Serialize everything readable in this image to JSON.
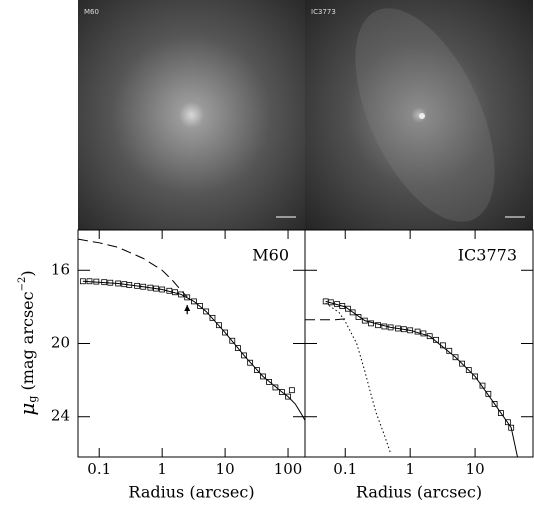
{
  "images": [
    {
      "label": "M60"
    },
    {
      "label": "IC3773"
    }
  ],
  "chart_data": [
    {
      "type": "line",
      "title": "M60",
      "xlabel": "Radius (arcsec)",
      "ylabel": {
        "symbol": "μ",
        "subscript": "g",
        "unit": "(mag arcsec",
        "exponent": "−2",
        "close": ")"
      },
      "xscale": "log",
      "xlim": [
        0.046,
        186
      ],
      "xticks": [
        0.1,
        1,
        10,
        100
      ],
      "ylim": [
        26.2,
        13.8
      ],
      "yticks": [
        16,
        20,
        24
      ],
      "color": "#000000",
      "arrow_x": 2.5,
      "arrow_y": [
        18.4,
        17.9
      ],
      "series": [
        {
          "style": "markers",
          "x": [
            0.055,
            0.07,
            0.09,
            0.12,
            0.15,
            0.2,
            0.25,
            0.3,
            0.4,
            0.5,
            0.65,
            0.8,
            1.0,
            1.3,
            1.6,
            2.0,
            2.5,
            3.2,
            4,
            5,
            6.3,
            8,
            10,
            13,
            16,
            20,
            25,
            32,
            40,
            50,
            63,
            80,
            100,
            115
          ],
          "values": [
            16.6,
            16.6,
            16.62,
            16.65,
            16.68,
            16.72,
            16.76,
            16.8,
            16.85,
            16.9,
            16.95,
            17.0,
            17.05,
            17.12,
            17.2,
            17.32,
            17.48,
            17.7,
            17.95,
            18.25,
            18.6,
            19.0,
            19.4,
            19.85,
            20.25,
            20.65,
            21.05,
            21.45,
            21.8,
            22.1,
            22.4,
            22.65,
            22.9,
            22.55
          ]
        },
        {
          "style": "solid",
          "x": [
            0.055,
            0.2,
            0.5,
            1.0,
            2.0,
            3.2,
            5,
            10,
            20,
            40,
            80,
            100,
            130,
            160,
            186
          ],
          "values": [
            16.6,
            16.72,
            16.9,
            17.05,
            17.32,
            17.7,
            18.25,
            19.4,
            20.65,
            21.8,
            22.65,
            22.9,
            23.3,
            23.8,
            24.2
          ]
        },
        {
          "style": "dashed",
          "x": [
            0.046,
            0.1,
            0.2,
            0.5,
            1,
            1.5,
            2,
            2.5
          ],
          "values": [
            14.3,
            14.5,
            14.75,
            15.35,
            16.0,
            16.6,
            17.1,
            17.45
          ]
        }
      ]
    },
    {
      "type": "line",
      "title": "IC3773",
      "xlabel": "Radius (arcsec)",
      "xscale": "log",
      "xlim": [
        0.024,
        78
      ],
      "xticks": [
        0.1,
        1,
        10
      ],
      "ylim": [
        26.2,
        13.8
      ],
      "yticks": [
        16,
        20,
        24
      ],
      "color": "#000000",
      "series": [
        {
          "style": "markers",
          "x": [
            0.05,
            0.06,
            0.075,
            0.09,
            0.11,
            0.13,
            0.16,
            0.2,
            0.25,
            0.32,
            0.4,
            0.5,
            0.65,
            0.8,
            1.0,
            1.3,
            1.6,
            2.0,
            2.5,
            3.2,
            4,
            5,
            6.3,
            8,
            10,
            13,
            16,
            20,
            25,
            32,
            36
          ],
          "values": [
            17.7,
            17.75,
            17.85,
            17.95,
            18.1,
            18.3,
            18.55,
            18.75,
            18.9,
            19.0,
            19.07,
            19.12,
            19.18,
            19.22,
            19.28,
            19.35,
            19.45,
            19.6,
            19.8,
            20.1,
            20.4,
            20.75,
            21.1,
            21.45,
            21.8,
            22.3,
            22.75,
            23.3,
            23.8,
            24.3,
            24.6
          ]
        },
        {
          "style": "solid",
          "x": [
            0.05,
            0.1,
            0.2,
            0.5,
            1.0,
            2.0,
            5,
            10,
            20,
            36,
            45
          ],
          "values": [
            17.7,
            18.0,
            18.75,
            19.12,
            19.28,
            19.6,
            20.75,
            21.8,
            23.3,
            24.6,
            26.2
          ]
        },
        {
          "style": "dotted",
          "x": [
            0.05,
            0.08,
            0.1,
            0.15,
            0.2,
            0.25,
            0.3,
            0.4,
            0.5
          ],
          "values": [
            17.8,
            18.3,
            18.8,
            20.0,
            21.5,
            22.8,
            23.8,
            25.0,
            26.0
          ]
        },
        {
          "style": "dashed",
          "x": [
            0.024,
            0.07,
            0.1
          ],
          "values": [
            18.7,
            18.7,
            18.65
          ]
        }
      ]
    }
  ]
}
